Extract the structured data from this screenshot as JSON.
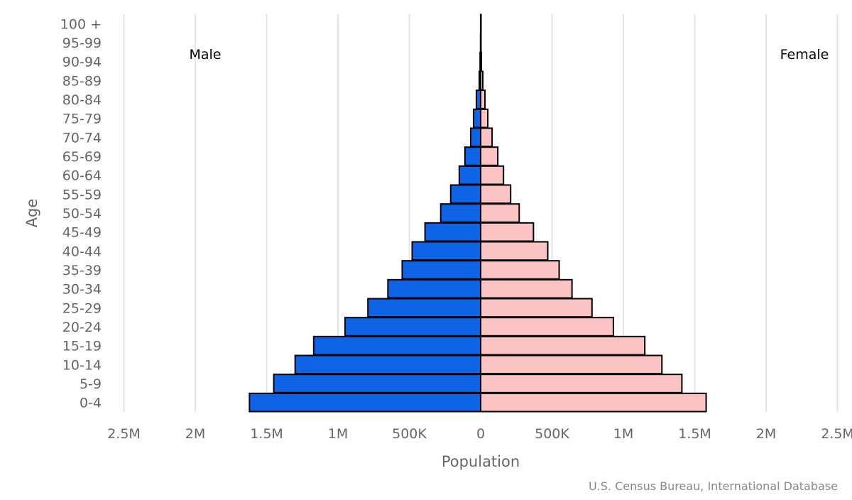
{
  "chart_data": {
    "type": "bar",
    "orientation": "horizontal-pyramid",
    "xlabel": "Population",
    "ylabel": "Age",
    "source": "U.S. Census Bureau, International Database",
    "categories": [
      "0-4",
      "5-9",
      "10-14",
      "15-19",
      "20-24",
      "25-29",
      "30-34",
      "35-39",
      "40-44",
      "45-49",
      "50-54",
      "55-59",
      "60-64",
      "65-69",
      "70-74",
      "75-79",
      "80-84",
      "85-89",
      "90-94",
      "95-99",
      "100 +"
    ],
    "xlim": [
      -2500000,
      2500000
    ],
    "x_ticks": [
      -2500000,
      -2000000,
      -1500000,
      -1000000,
      -500000,
      0,
      500000,
      1000000,
      1500000,
      2000000,
      2500000
    ],
    "x_tick_labels": [
      "2.5M",
      "2M",
      "1.5M",
      "1M",
      "500K",
      "0",
      "500K",
      "1M",
      "1.5M",
      "2M",
      "2.5M"
    ],
    "grid": true,
    "series": [
      {
        "name": "Male",
        "side": "left",
        "color": "#0f64e6",
        "values": [
          1620000,
          1450000,
          1300000,
          1170000,
          950000,
          790000,
          650000,
          550000,
          480000,
          390000,
          280000,
          210000,
          150000,
          110000,
          70000,
          50000,
          30000,
          10000,
          4000,
          1000,
          300
        ]
      },
      {
        "name": "Female",
        "side": "right",
        "color": "#fcc3c4",
        "values": [
          1580000,
          1410000,
          1270000,
          1150000,
          930000,
          780000,
          640000,
          550000,
          470000,
          370000,
          270000,
          210000,
          160000,
          120000,
          80000,
          50000,
          30000,
          15000,
          5000,
          2000,
          500
        ]
      }
    ]
  }
}
